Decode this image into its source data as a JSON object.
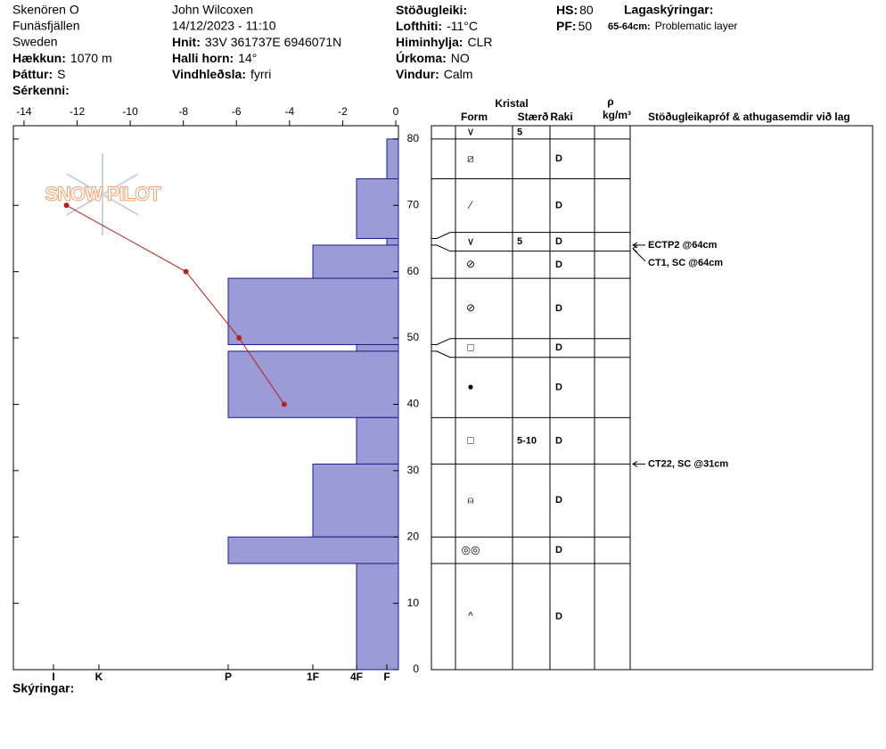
{
  "header": {
    "site": "Skenören O",
    "area": "Funäsfjällen",
    "country": "Sweden",
    "observer": "John Wilcoxen",
    "datetime": "14/12/2023 - 11:10",
    "elevation": {
      "label": "Hækkun:",
      "value": "1070 m"
    },
    "aspect": {
      "label": "Þáttur:",
      "value": "S"
    },
    "notes": {
      "label": "Sérkenni:"
    },
    "coords": {
      "label": "Hnit:",
      "value": "33V 361737E 6946071N"
    },
    "slope": {
      "label": "Halli horn:",
      "value": "14°"
    },
    "wind_loading": {
      "label": "Vindhleðsla:",
      "value": "fyrri"
    },
    "stability": {
      "label": "Stöðugleiki:"
    },
    "air_temp": {
      "label": "Lofthiti:",
      "value": "-11°C"
    },
    "sky": {
      "label": "Himinhylja:",
      "value": "CLR"
    },
    "precip": {
      "label": "Úrkoma:",
      "value": "NO"
    },
    "wind": {
      "label": "Vindur:",
      "value": "Calm"
    },
    "hs": {
      "label": "HS:",
      "value": 80
    },
    "pf": {
      "label": "PF:",
      "value": 50
    },
    "legend_title": "Lagaskýringar:",
    "layer_note": {
      "label": "65-64cm:",
      "value": "Problematic layer"
    }
  },
  "footer": "Skýringar:",
  "chart_data": {
    "type": "snow_profile",
    "watermark": "SNOW PILOT",
    "ylim": [
      0,
      82
    ],
    "yticks": [
      0,
      10,
      20,
      30,
      40,
      50,
      60,
      70,
      80
    ],
    "temp_xlim": [
      -14.4,
      0.1
    ],
    "temp_xticks": [
      -14,
      -12,
      -10,
      -8,
      -6,
      -4,
      -2,
      0
    ],
    "temperature": {
      "color": "#b22222",
      "heights": [
        70,
        60,
        50,
        40
      ],
      "values": [
        -12.4,
        -7.9,
        -5.9,
        -4.2
      ]
    },
    "hardness_xlim": [
      432,
      0
    ],
    "hardness_ticks": [
      {
        "value": 387,
        "label": "I"
      },
      {
        "value": 336,
        "label": "K"
      },
      {
        "value": 191,
        "label": "P"
      },
      {
        "value": 96,
        "label": "1F"
      },
      {
        "value": 47,
        "label": "4F"
      },
      {
        "value": 13,
        "label": "F"
      }
    ],
    "bar_color": "#9b9bd6",
    "bar_edge": "#1c1c8c",
    "columns": {
      "crystal": "Kristal",
      "form": "Form",
      "size": "Stærð",
      "moisture": "Raki",
      "density_symbol": "ρ",
      "density_unit": "kg/m³",
      "comments": "Stöðugleikapróf & athugasemdir við lag"
    },
    "layers": [
      {
        "top": 82,
        "bottom": 80,
        "hardness": null,
        "form": "∨",
        "size": "5"
      },
      {
        "top": 80,
        "bottom": 74,
        "hardness": 13,
        "form": "⧄",
        "moisture": "D"
      },
      {
        "top": 74,
        "bottom": 65,
        "hardness": 47,
        "form": "⁄",
        "moisture": "D"
      },
      {
        "top": 65,
        "bottom": 64,
        "hardness": 13,
        "form": "∨",
        "size": "5",
        "moisture": "D"
      },
      {
        "top": 64,
        "bottom": 59,
        "hardness": 96,
        "form": "⊘",
        "moisture": "D"
      },
      {
        "top": 59,
        "bottom": 49,
        "hardness": 191,
        "form": "⊘",
        "moisture": "D"
      },
      {
        "top": 49,
        "bottom": 48,
        "hardness": 47,
        "form": "□",
        "moisture": "D"
      },
      {
        "top": 48,
        "bottom": 38,
        "hardness": 191,
        "form": "●",
        "moisture": "D"
      },
      {
        "top": 38,
        "bottom": 31,
        "hardness": 47,
        "form": "□",
        "size": "5-10",
        "moisture": "D"
      },
      {
        "top": 31,
        "bottom": 20,
        "hardness": 96,
        "form": "⍝",
        "moisture": "D"
      },
      {
        "top": 20,
        "bottom": 16,
        "hardness": 191,
        "form": "◎◎",
        "moisture": "D"
      },
      {
        "top": 16,
        "bottom": 0,
        "hardness": 47,
        "form": "^",
        "moisture": "D"
      }
    ],
    "tests": [
      {
        "text": "ECTP2 @64cm",
        "height": 64
      },
      {
        "text": "CT1, SC @64cm",
        "height": 64
      },
      {
        "text": "CT22, SC @31cm",
        "height": 31
      }
    ]
  }
}
